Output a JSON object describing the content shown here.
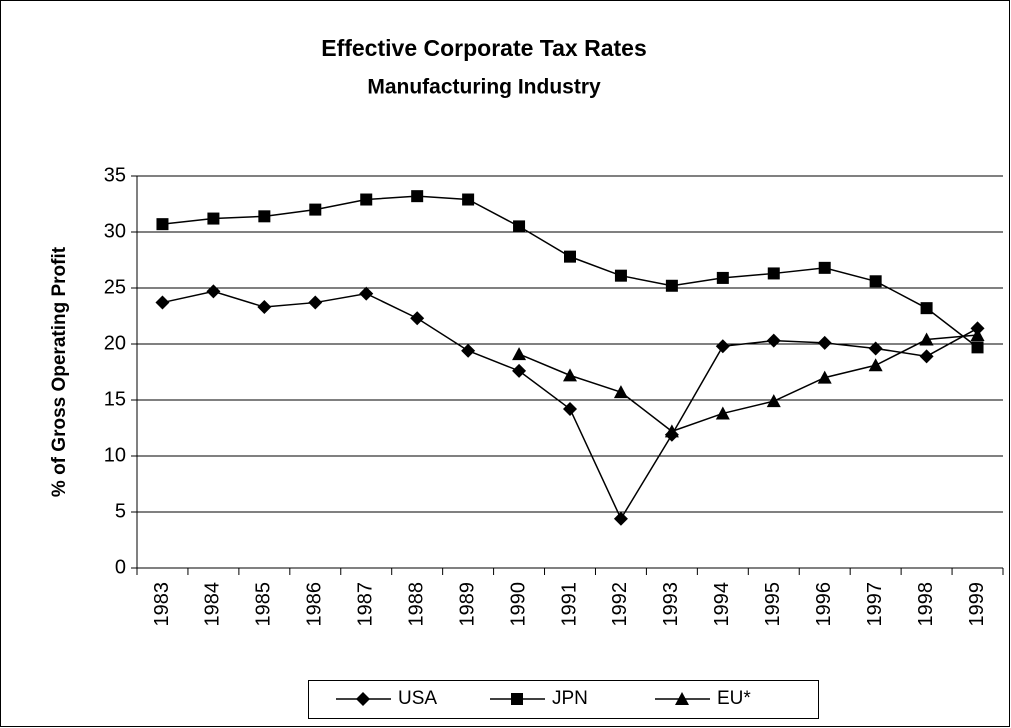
{
  "chart_data": {
    "type": "line",
    "title": "Effective Corporate Tax Rates",
    "subtitle": "Manufacturing Industry",
    "y_label": "% of Gross Operating Profit",
    "categories": [
      "1983",
      "1984",
      "1985",
      "1986",
      "1987",
      "1988",
      "1989",
      "1990",
      "1991",
      "1992",
      "1993",
      "1994",
      "1995",
      "1996",
      "1997",
      "1998",
      "1999"
    ],
    "series": [
      {
        "name": "USA",
        "color": "#000000",
        "marker": "diamond",
        "values": [
          23.7,
          24.7,
          23.3,
          23.7,
          24.5,
          22.3,
          19.4,
          17.6,
          14.2,
          4.4,
          11.9,
          19.8,
          20.3,
          20.1,
          19.6,
          18.9,
          21.4
        ]
      },
      {
        "name": "JPN",
        "color": "#000000",
        "marker": "square",
        "values": [
          30.7,
          31.2,
          31.4,
          32.0,
          32.9,
          33.2,
          32.9,
          30.5,
          27.8,
          26.1,
          25.2,
          25.9,
          26.3,
          26.8,
          25.6,
          23.2,
          19.7
        ]
      },
      {
        "name": "EU*",
        "color": "#000000",
        "marker": "triangle",
        "values": [
          null,
          null,
          null,
          null,
          null,
          null,
          null,
          19.1,
          17.2,
          15.7,
          12.2,
          13.8,
          14.9,
          17.0,
          18.1,
          20.4,
          20.8
        ]
      }
    ],
    "ylim": [
      0,
      35
    ],
    "yticks": [
      0,
      5,
      10,
      15,
      20,
      25,
      30,
      35
    ],
    "grid": true,
    "legend": "bottom"
  }
}
